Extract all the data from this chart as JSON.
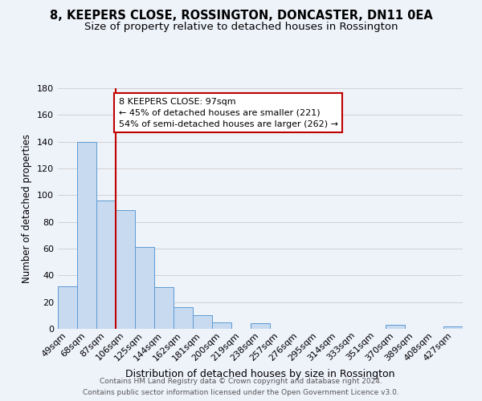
{
  "title1": "8, KEEPERS CLOSE, ROSSINGTON, DONCASTER, DN11 0EA",
  "title2": "Size of property relative to detached houses in Rossington",
  "xlabel": "Distribution of detached houses by size in Rossington",
  "ylabel": "Number of detached properties",
  "footer1": "Contains HM Land Registry data © Crown copyright and database right 2024.",
  "footer2": "Contains public sector information licensed under the Open Government Licence v3.0.",
  "bin_labels": [
    "49sqm",
    "68sqm",
    "87sqm",
    "106sqm",
    "125sqm",
    "144sqm",
    "162sqm",
    "181sqm",
    "200sqm",
    "219sqm",
    "238sqm",
    "257sqm",
    "276sqm",
    "295sqm",
    "314sqm",
    "333sqm",
    "351sqm",
    "370sqm",
    "389sqm",
    "408sqm",
    "427sqm"
  ],
  "bar_heights": [
    32,
    140,
    96,
    89,
    61,
    31,
    16,
    10,
    5,
    0,
    4,
    0,
    0,
    0,
    0,
    0,
    0,
    3,
    0,
    0,
    2
  ],
  "bar_color": "#c8daf0",
  "bar_edge_color": "#5b9bd5",
  "vline_x_index": 3.0,
  "vline_color": "#c00000",
  "annotation_line1": "8 KEEPERS CLOSE: 97sqm",
  "annotation_line2": "← 45% of detached houses are smaller (221)",
  "annotation_line3": "54% of semi-detached houses are larger (262) →",
  "annotation_box_color": "#c00000",
  "annotation_box_facecolor": "white",
  "ylim": [
    0,
    180
  ],
  "yticks": [
    0,
    20,
    40,
    60,
    80,
    100,
    120,
    140,
    160,
    180
  ],
  "grid_color": "#cccccc",
  "background_color": "#eef2f9",
  "title1_fontsize": 10.5,
  "title2_fontsize": 9.5,
  "xlabel_fontsize": 9,
  "ylabel_fontsize": 8.5,
  "tick_fontsize": 8,
  "annotation_fontsize": 8
}
